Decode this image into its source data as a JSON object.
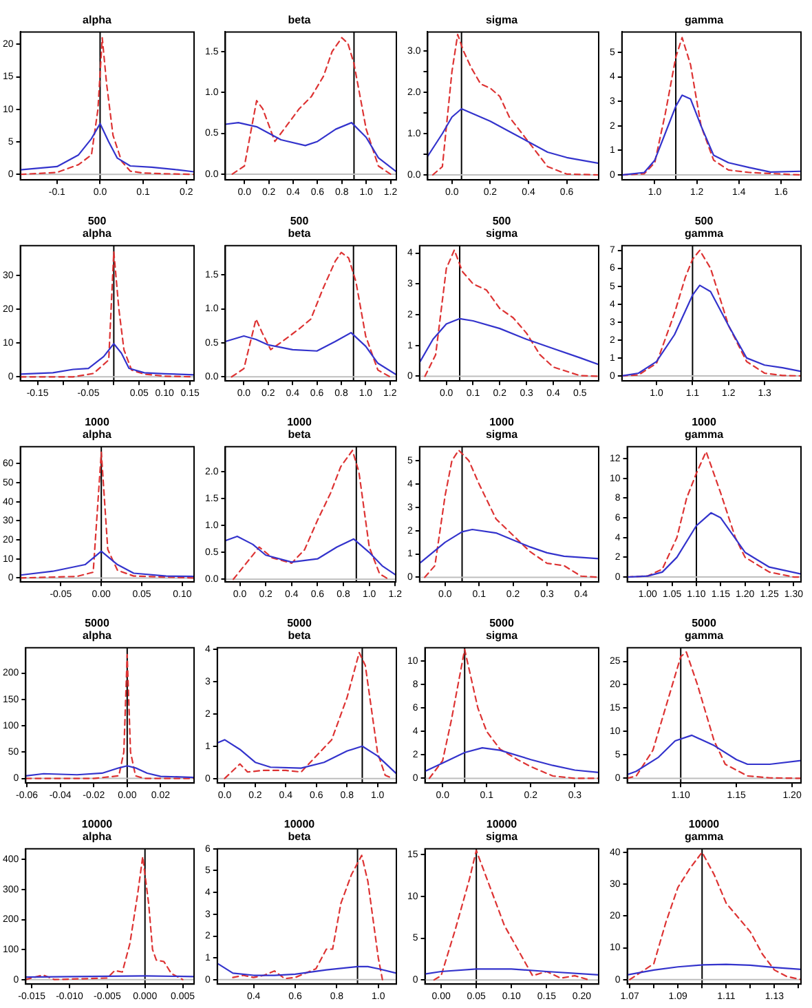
{
  "chart_data": [
    {
      "type": "line",
      "title": "alpha",
      "xlim": [
        -0.185,
        0.218
      ],
      "xticks": [
        -0.1,
        {
          "value": 0,
          "label": "0.0"
        },
        0.1,
        0.2
      ],
      "ylim": [
        -0.84,
        21.9
      ],
      "yticks": [
        0,
        5,
        10,
        15,
        20
      ],
      "grid": false,
      "legend": false,
      "marker": "none",
      "ref_lines": [
        {
          "axis": "x",
          "value": 0,
          "color": "#000000"
        },
        {
          "axis": "y",
          "value": 0,
          "color": "#bebebe"
        }
      ],
      "series": [
        {
          "color": "#3333cc",
          "line_style": "solid",
          "x": [
            -0.185,
            -0.1,
            -0.05,
            -0.02,
            0,
            0.02,
            0.04,
            0.07,
            0.12,
            0.18,
            0.218
          ],
          "values": [
            0.7,
            1.2,
            3,
            5.5,
            7.8,
            5,
            2.5,
            1.3,
            1.1,
            0.7,
            0.4
          ]
        },
        {
          "color": "#dd3333",
          "line_style": "dashed",
          "x": [
            -0.185,
            -0.1,
            -0.05,
            -0.02,
            -0.005,
            0.005,
            0.015,
            0.03,
            0.05,
            0.07,
            0.1,
            0.15,
            0.218
          ],
          "values": [
            0,
            0.3,
            1.5,
            3,
            10,
            21,
            14,
            6,
            2,
            0.5,
            0.2,
            0.1,
            0
          ]
        }
      ]
    },
    {
      "type": "line",
      "title": "beta",
      "xlim": [
        -0.157,
        1.248
      ],
      "xticks": [
        {
          "value": 0,
          "label": "0.0"
        },
        0.2,
        0.4,
        0.6,
        0.8,
        {
          "value": 1,
          "label": "1.0"
        },
        1.2
      ],
      "ylim": [
        -0.07,
        1.74
      ],
      "yticks": [
        {
          "value": 0,
          "label": "0.0"
        },
        0.5,
        {
          "value": 1,
          "label": "1.0"
        },
        1.5
      ],
      "grid": false,
      "legend": false,
      "marker": "none",
      "ref_lines": [
        {
          "axis": "x",
          "value": 0.9,
          "color": "#000000"
        },
        {
          "axis": "y",
          "value": 0,
          "color": "#bebebe"
        }
      ],
      "series": [
        {
          "color": "#3333cc",
          "line_style": "solid",
          "x": [
            -0.157,
            -0.05,
            0.1,
            0.3,
            0.5,
            0.6,
            0.75,
            0.88,
            1,
            1.1,
            1.248
          ],
          "values": [
            0.61,
            0.63,
            0.58,
            0.42,
            0.35,
            0.4,
            0.55,
            0.63,
            0.45,
            0.2,
            0.03
          ]
        },
        {
          "color": "#dd3333",
          "line_style": "dashed",
          "x": [
            -0.1,
            0,
            0.1,
            0.15,
            0.25,
            0.35,
            0.45,
            0.55,
            0.65,
            0.72,
            0.8,
            0.85,
            0.9,
            1,
            1.1,
            1.2
          ],
          "values": [
            0,
            0.1,
            0.9,
            0.8,
            0.4,
            0.6,
            0.8,
            0.95,
            1.2,
            1.5,
            1.67,
            1.6,
            1.35,
            0.55,
            0.1,
            0
          ]
        }
      ]
    },
    {
      "type": "line",
      "title": "sigma",
      "xlim": [
        -0.127,
        0.767
      ],
      "xticks": [
        {
          "value": 0,
          "label": "0.0"
        },
        0.2,
        0.4,
        0.6
      ],
      "ylim": [
        -0.12,
        3.46
      ],
      "yticks": [
        {
          "value": 0,
          "label": "0.0"
        },
        {
          "value": 0.5,
          "label": null
        },
        {
          "value": 1,
          "label": "1.0"
        },
        {
          "value": 1.5,
          "label": null
        },
        {
          "value": 2,
          "label": "2.0"
        },
        {
          "value": 2.5,
          "label": null
        },
        {
          "value": 3,
          "label": "3.0"
        }
      ],
      "grid": false,
      "legend": false,
      "marker": "none",
      "ref_lines": [
        {
          "axis": "x",
          "value": 0.05,
          "color": "#000000"
        },
        {
          "axis": "y",
          "value": 0,
          "color": "#bebebe"
        }
      ],
      "series": [
        {
          "color": "#3333cc",
          "line_style": "solid",
          "x": [
            -0.127,
            -0.05,
            0,
            0.05,
            0.1,
            0.2,
            0.3,
            0.4,
            0.5,
            0.6,
            0.767
          ],
          "values": [
            0.45,
            1,
            1.4,
            1.6,
            1.5,
            1.3,
            1.05,
            0.8,
            0.55,
            0.42,
            0.28
          ]
        },
        {
          "color": "#dd3333",
          "line_style": "dashed",
          "x": [
            -0.1,
            -0.05,
            0,
            0.03,
            0.06,
            0.1,
            0.15,
            0.2,
            0.25,
            0.3,
            0.4,
            0.5,
            0.6,
            0.767
          ],
          "values": [
            0,
            0.2,
            2.5,
            3.4,
            3,
            2.6,
            2.2,
            2.1,
            1.9,
            1.4,
            0.8,
            0.2,
            0.02,
            0
          ]
        }
      ]
    },
    {
      "type": "line",
      "title": "gamma",
      "xlim": [
        0.844,
        1.695
      ],
      "xticks": [
        {
          "value": 1,
          "label": "1.0"
        },
        1.2,
        1.4,
        1.6
      ],
      "ylim": [
        -0.2,
        5.83
      ],
      "yticks": [
        0,
        1,
        2,
        3,
        4,
        5
      ],
      "grid": false,
      "legend": false,
      "marker": "none",
      "ref_lines": [
        {
          "axis": "x",
          "value": 1.1,
          "color": "#000000"
        },
        {
          "axis": "y",
          "value": 0,
          "color": "#bebebe"
        }
      ],
      "series": [
        {
          "color": "#3333cc",
          "line_style": "solid",
          "x": [
            0.844,
            0.95,
            1,
            1.05,
            1.1,
            1.13,
            1.17,
            1.22,
            1.28,
            1.35,
            1.45,
            1.55,
            1.695
          ],
          "values": [
            0,
            0.1,
            0.6,
            1.7,
            2.8,
            3.25,
            3.1,
            2,
            0.8,
            0.5,
            0.3,
            0.12,
            0.15
          ]
        },
        {
          "color": "#dd3333",
          "line_style": "dashed",
          "x": [
            0.844,
            0.95,
            1,
            1.05,
            1.1,
            1.13,
            1.17,
            1.22,
            1.28,
            1.35,
            1.45,
            1.695
          ],
          "values": [
            0,
            0.05,
            0.5,
            2.5,
            4.8,
            5.6,
            4.5,
            2,
            0.6,
            0.2,
            0.1,
            0
          ]
        }
      ]
    },
    {
      "type": "line",
      "title": "500\nalpha",
      "xlim": [
        -0.184,
        0.158
      ],
      "xticks": [
        -0.15,
        {
          "value": -0.1,
          "label": null
        },
        -0.05,
        {
          "value": 0,
          "label": null
        },
        0.05,
        {
          "value": 0.1,
          "label": "0.10"
        },
        {
          "value": 0.15,
          "label": "0.15"
        }
      ],
      "ylim": [
        -1.2,
        38.8
      ],
      "yticks": [
        0,
        10,
        20,
        30
      ],
      "grid": false,
      "legend": false,
      "marker": "none",
      "ref_lines": [
        {
          "axis": "x",
          "value": 0,
          "color": "#000000"
        },
        {
          "axis": "y",
          "value": 0,
          "color": "#bebebe"
        }
      ],
      "series": [
        {
          "color": "#3333cc",
          "line_style": "solid",
          "x": [
            -0.184,
            -0.12,
            -0.08,
            -0.05,
            -0.02,
            0,
            0.015,
            0.03,
            0.06,
            0.1,
            0.158
          ],
          "values": [
            0.8,
            1.2,
            2.2,
            2.5,
            6,
            9.8,
            7,
            2.5,
            1.2,
            0.9,
            0.6
          ]
        },
        {
          "color": "#dd3333",
          "line_style": "dashed",
          "x": [
            -0.184,
            -0.08,
            -0.04,
            -0.01,
            0,
            0.01,
            0.02,
            0.035,
            0.06,
            0.1,
            0.158
          ],
          "values": [
            0,
            0,
            1,
            5,
            37,
            20,
            8,
            2,
            0.8,
            0.2,
            0
          ]
        }
      ]
    },
    {
      "type": "line",
      "title": "500\nbeta",
      "xlim": [
        -0.152,
        1.252
      ],
      "xticks": [
        {
          "value": 0,
          "label": "0.0"
        },
        0.2,
        0.4,
        0.6,
        0.8,
        {
          "value": 1,
          "label": "1.0"
        },
        1.2
      ],
      "ylim": [
        -0.06,
        1.93
      ],
      "yticks": [
        {
          "value": 0,
          "label": "0.0"
        },
        0.5,
        {
          "value": 1,
          "label": "1.0"
        },
        1.5
      ],
      "grid": false,
      "legend": false,
      "marker": "none",
      "ref_lines": [
        {
          "axis": "x",
          "value": 0.9,
          "color": "#000000"
        },
        {
          "axis": "y",
          "value": 0,
          "color": "#bebebe"
        }
      ],
      "series": [
        {
          "color": "#3333cc",
          "line_style": "solid",
          "x": [
            -0.152,
            0,
            0.1,
            0.2,
            0.4,
            0.6,
            0.75,
            0.88,
            1,
            1.1,
            1.252
          ],
          "values": [
            0.52,
            0.6,
            0.55,
            0.47,
            0.4,
            0.38,
            0.52,
            0.65,
            0.45,
            0.2,
            0.03
          ]
        },
        {
          "color": "#dd3333",
          "line_style": "dashed",
          "x": [
            -0.1,
            0,
            0.1,
            0.15,
            0.22,
            0.3,
            0.45,
            0.55,
            0.65,
            0.75,
            0.8,
            0.86,
            0.92,
            1,
            1.1,
            1.2
          ],
          "values": [
            0,
            0.12,
            0.85,
            0.65,
            0.4,
            0.5,
            0.7,
            0.85,
            1.3,
            1.7,
            1.83,
            1.75,
            1.4,
            0.6,
            0.1,
            0
          ]
        }
      ]
    },
    {
      "type": "line",
      "title": "500\nsigma",
      "xlim": [
        -0.1,
        0.57
      ],
      "xticks": [
        {
          "value": 0,
          "label": "0.0"
        },
        0.1,
        0.2,
        0.3,
        0.4,
        0.5
      ],
      "ylim": [
        -0.15,
        4.24
      ],
      "yticks": [
        0,
        1,
        2,
        3,
        4
      ],
      "grid": false,
      "legend": false,
      "marker": "none",
      "ref_lines": [
        {
          "axis": "x",
          "value": 0.05,
          "color": "#000000"
        },
        {
          "axis": "y",
          "value": 0,
          "color": "#bebebe"
        }
      ],
      "series": [
        {
          "color": "#3333cc",
          "line_style": "solid",
          "x": [
            -0.1,
            -0.05,
            0,
            0.05,
            0.1,
            0.2,
            0.3,
            0.4,
            0.5,
            0.57
          ],
          "values": [
            0.45,
            1.2,
            1.7,
            1.87,
            1.8,
            1.55,
            1.2,
            0.9,
            0.6,
            0.38
          ]
        },
        {
          "color": "#dd3333",
          "line_style": "dashed",
          "x": [
            -0.08,
            -0.04,
            0,
            0.03,
            0.06,
            0.1,
            0.15,
            0.2,
            0.25,
            0.3,
            0.35,
            0.4,
            0.5,
            0.57
          ],
          "values": [
            0,
            0.7,
            3.5,
            4.1,
            3.4,
            3,
            2.8,
            2.2,
            1.9,
            1.4,
            0.7,
            0.3,
            0.02,
            0
          ]
        }
      ]
    },
    {
      "type": "line",
      "title": "500\ngamma",
      "xlim": [
        0.904,
        1.401
      ],
      "xticks": [
        {
          "value": 1,
          "label": "1.0"
        },
        1.1,
        1.2,
        1.3
      ],
      "ylim": [
        -0.28,
        7.26
      ],
      "yticks": [
        0,
        1,
        2,
        3,
        4,
        5,
        6,
        7
      ],
      "grid": false,
      "legend": false,
      "marker": "none",
      "ref_lines": [
        {
          "axis": "x",
          "value": 1.1,
          "color": "#000000"
        },
        {
          "axis": "y",
          "value": 0,
          "color": "#bebebe"
        }
      ],
      "series": [
        {
          "color": "#3333cc",
          "line_style": "solid",
          "x": [
            0.904,
            0.95,
            1,
            1.05,
            1.1,
            1.12,
            1.15,
            1.2,
            1.25,
            1.3,
            1.35,
            1.401
          ],
          "values": [
            0,
            0.15,
            0.8,
            2.3,
            4.5,
            5.05,
            4.7,
            2.8,
            1,
            0.6,
            0.45,
            0.25
          ]
        },
        {
          "color": "#dd3333",
          "line_style": "dashed",
          "x": [
            0.904,
            0.95,
            1,
            1.05,
            1.08,
            1.1,
            1.12,
            1.15,
            1.2,
            1.25,
            1.3,
            1.35,
            1.401
          ],
          "values": [
            0,
            0.05,
            0.7,
            3.5,
            5.5,
            6.5,
            7,
            6,
            2.8,
            0.8,
            0.15,
            0.02,
            0
          ]
        }
      ]
    },
    {
      "type": "line",
      "title": "1000\nalpha",
      "xlim": [
        -0.1,
        0.1146
      ],
      "xticks": [
        -0.05,
        {
          "value": 0,
          "label": "0.00"
        },
        {
          "value": 0.05,
          "label": "0.05"
        },
        {
          "value": 0.1,
          "label": "0.10"
        }
      ],
      "ylim": [
        -2.1,
        68.9
      ],
      "yticks": [
        0,
        10,
        20,
        30,
        40,
        50,
        60
      ],
      "grid": false,
      "legend": false,
      "marker": "none",
      "ref_lines": [
        {
          "axis": "x",
          "value": 0,
          "color": "#000000"
        },
        {
          "axis": "y",
          "value": 0,
          "color": "#bebebe"
        }
      ],
      "series": [
        {
          "color": "#3333cc",
          "line_style": "solid",
          "x": [
            -0.1,
            -0.06,
            -0.02,
            0,
            0.02,
            0.04,
            0.08,
            0.1146
          ],
          "values": [
            1.5,
            3.5,
            7,
            14,
            7,
            2.5,
            1,
            0.8
          ]
        },
        {
          "color": "#dd3333",
          "line_style": "dashed",
          "x": [
            -0.1,
            -0.03,
            -0.01,
            0,
            0.008,
            0.02,
            0.04,
            0.1146
          ],
          "values": [
            0,
            0.8,
            3,
            66,
            15,
            4,
            1,
            0
          ]
        }
      ]
    },
    {
      "type": "line",
      "title": "1000\nbeta",
      "xlim": [
        -0.112,
        1.205
      ],
      "xticks": [
        {
          "value": 0,
          "label": "0.0"
        },
        0.2,
        0.4,
        0.6,
        0.8,
        {
          "value": 1,
          "label": "1.0"
        },
        1.2
      ],
      "ylim": [
        -0.05,
        2.47
      ],
      "yticks": [
        {
          "value": 0,
          "label": "0.0"
        },
        0.5,
        {
          "value": 1,
          "label": "1.0"
        },
        1.5,
        {
          "value": 2,
          "label": "2.0"
        }
      ],
      "grid": false,
      "legend": false,
      "marker": "none",
      "ref_lines": [
        {
          "axis": "x",
          "value": 0.9,
          "color": "#000000"
        },
        {
          "axis": "y",
          "value": 0,
          "color": "#bebebe"
        }
      ],
      "series": [
        {
          "color": "#3333cc",
          "line_style": "solid",
          "x": [
            -0.112,
            -0.02,
            0.1,
            0.2,
            0.4,
            0.6,
            0.75,
            0.88,
            1,
            1.1,
            1.205
          ],
          "values": [
            0.72,
            0.8,
            0.65,
            0.45,
            0.32,
            0.38,
            0.6,
            0.75,
            0.5,
            0.25,
            0.08
          ]
        },
        {
          "color": "#dd3333",
          "line_style": "dashed",
          "x": [
            -0.05,
            0.05,
            0.15,
            0.25,
            0.4,
            0.5,
            0.6,
            0.7,
            0.78,
            0.87,
            0.92,
            1,
            1.08,
            1.15
          ],
          "values": [
            0,
            0.3,
            0.6,
            0.4,
            0.3,
            0.55,
            1.1,
            1.6,
            2.1,
            2.4,
            2,
            0.6,
            0.1,
            0
          ]
        }
      ]
    },
    {
      "type": "line",
      "title": "1000\nsigma",
      "xlim": [
        -0.075,
        0.452
      ],
      "xticks": [
        {
          "value": 0,
          "label": "0.0"
        },
        0.1,
        0.2,
        0.3,
        0.4
      ],
      "ylim": [
        -0.2,
        5.6
      ],
      "yticks": [
        0,
        1,
        2,
        3,
        4,
        5
      ],
      "grid": false,
      "legend": false,
      "marker": "none",
      "ref_lines": [
        {
          "axis": "x",
          "value": 0.05,
          "color": "#000000"
        },
        {
          "axis": "y",
          "value": 0,
          "color": "#bebebe"
        }
      ],
      "series": [
        {
          "color": "#3333cc",
          "line_style": "solid",
          "x": [
            -0.075,
            0,
            0.05,
            0.08,
            0.15,
            0.2,
            0.25,
            0.3,
            0.35,
            0.452
          ],
          "values": [
            0.6,
            1.5,
            1.95,
            2.05,
            1.9,
            1.6,
            1.3,
            1.05,
            0.9,
            0.8
          ]
        },
        {
          "color": "#dd3333",
          "line_style": "dashed",
          "x": [
            -0.06,
            -0.03,
            0,
            0.02,
            0.04,
            0.07,
            0.1,
            0.15,
            0.2,
            0.25,
            0.3,
            0.35,
            0.4,
            0.452
          ],
          "values": [
            0,
            0.5,
            3.5,
            5,
            5.45,
            5,
            4,
            2.5,
            1.8,
            1.1,
            0.6,
            0.5,
            0.05,
            0
          ]
        }
      ]
    },
    {
      "type": "line",
      "title": "1000\ngamma",
      "xlim": [
        0.958,
        1.315
      ],
      "xticks": [
        {
          "value": 1,
          "label": "1.00"
        },
        1.05,
        {
          "value": 1.1,
          "label": "1.10"
        },
        1.15,
        {
          "value": 1.2,
          "label": "1.20"
        },
        1.25,
        {
          "value": 1.3,
          "label": "1.30"
        }
      ],
      "ylim": [
        -0.5,
        13.2
      ],
      "yticks": [
        0,
        2,
        4,
        6,
        8,
        10,
        12
      ],
      "grid": false,
      "legend": false,
      "marker": "none",
      "ref_lines": [
        {
          "axis": "x",
          "value": 1.1,
          "color": "#000000"
        },
        {
          "axis": "y",
          "value": 0,
          "color": "#bebebe"
        }
      ],
      "series": [
        {
          "color": "#3333cc",
          "line_style": "solid",
          "x": [
            0.958,
            1,
            1.03,
            1.06,
            1.1,
            1.13,
            1.15,
            1.2,
            1.25,
            1.315
          ],
          "values": [
            0,
            0.1,
            0.5,
            2,
            5.2,
            6.5,
            6,
            2.5,
            1,
            0.3
          ]
        },
        {
          "color": "#dd3333",
          "line_style": "dashed",
          "x": [
            0.958,
            1,
            1.03,
            1.06,
            1.08,
            1.1,
            1.12,
            1.15,
            1.18,
            1.2,
            1.25,
            1.3,
            1.315
          ],
          "values": [
            0,
            0.1,
            0.8,
            4,
            8,
            10.5,
            12.7,
            8.5,
            4,
            2,
            0.5,
            0,
            0
          ]
        }
      ]
    },
    {
      "type": "line",
      "title": "5000\nalpha",
      "xlim": [
        -0.0607,
        0.04
      ],
      "xticks": [
        -0.06,
        -0.04,
        -0.02,
        {
          "value": 0,
          "label": "0.00"
        },
        {
          "value": 0.02,
          "label": "0.02"
        }
      ],
      "ylim": [
        -8.6,
        248
      ],
      "yticks": [
        0,
        50,
        100,
        150,
        200
      ],
      "grid": false,
      "legend": false,
      "marker": "none",
      "ref_lines": [
        {
          "axis": "x",
          "value": 0,
          "color": "#000000"
        },
        {
          "axis": "y",
          "value": 0,
          "color": "#bebebe"
        }
      ],
      "series": [
        {
          "color": "#3333cc",
          "line_style": "solid",
          "x": [
            -0.0607,
            -0.05,
            -0.03,
            -0.015,
            -0.005,
            0,
            0.005,
            0.012,
            0.02,
            0.04
          ],
          "values": [
            5,
            9,
            7,
            10,
            20,
            24,
            20,
            10,
            4,
            2
          ]
        },
        {
          "color": "#dd3333",
          "line_style": "dashed",
          "x": [
            -0.0607,
            -0.02,
            -0.005,
            -0.002,
            0,
            0.002,
            0.005,
            0.01,
            0.04
          ],
          "values": [
            0,
            0,
            5,
            50,
            235,
            50,
            5,
            0,
            0
          ]
        }
      ]
    },
    {
      "type": "line",
      "title": "5000\nbeta",
      "xlim": [
        -0.048,
        1.123
      ],
      "xticks": [
        {
          "value": 0,
          "label": "0.0"
        },
        0.2,
        0.4,
        0.6,
        0.8,
        {
          "value": 1,
          "label": "1.0"
        }
      ],
      "ylim": [
        -0.14,
        4.05
      ],
      "yticks": [
        0,
        1,
        2,
        3,
        4
      ],
      "grid": false,
      "legend": false,
      "marker": "none",
      "ref_lines": [
        {
          "axis": "x",
          "value": 0.9,
          "color": "#000000"
        },
        {
          "axis": "y",
          "value": 0,
          "color": "#bebebe"
        }
      ],
      "series": [
        {
          "color": "#3333cc",
          "line_style": "solid",
          "x": [
            -0.048,
            0,
            0.1,
            0.2,
            0.3,
            0.5,
            0.65,
            0.8,
            0.9,
            1,
            1.123
          ],
          "values": [
            1.1,
            1.2,
            0.9,
            0.5,
            0.35,
            0.32,
            0.5,
            0.85,
            1,
            0.7,
            0.15
          ]
        },
        {
          "color": "#dd3333",
          "line_style": "dashed",
          "x": [
            0,
            0.1,
            0.15,
            0.25,
            0.4,
            0.5,
            0.6,
            0.7,
            0.8,
            0.88,
            0.92,
            1,
            1.05,
            1.1
          ],
          "values": [
            0,
            0.45,
            0.2,
            0.25,
            0.25,
            0.2,
            0.7,
            1.2,
            2.5,
            3.9,
            3.5,
            0.8,
            0.1,
            0
          ]
        }
      ]
    },
    {
      "type": "line",
      "title": "5000\nsigma",
      "xlim": [
        -0.04,
        0.354
      ],
      "xticks": [
        {
          "value": 0,
          "label": "0.0"
        },
        0.1,
        0.2,
        0.3
      ],
      "ylim": [
        -0.4,
        11.15
      ],
      "yticks": [
        0,
        2,
        4,
        6,
        8,
        10
      ],
      "grid": false,
      "legend": false,
      "marker": "none",
      "ref_lines": [
        {
          "axis": "x",
          "value": 0.05,
          "color": "#000000"
        },
        {
          "axis": "y",
          "value": 0,
          "color": "#bebebe"
        }
      ],
      "series": [
        {
          "color": "#3333cc",
          "line_style": "solid",
          "x": [
            -0.04,
            0,
            0.05,
            0.09,
            0.13,
            0.2,
            0.25,
            0.3,
            0.354
          ],
          "values": [
            0.6,
            1.3,
            2.2,
            2.6,
            2.4,
            1.6,
            1.1,
            0.7,
            0.5
          ]
        },
        {
          "color": "#dd3333",
          "line_style": "dashed",
          "x": [
            -0.03,
            0,
            0.02,
            0.05,
            0.08,
            0.1,
            0.13,
            0.17,
            0.2,
            0.25,
            0.3,
            0.354
          ],
          "values": [
            0,
            1.5,
            5,
            11,
            6,
            4,
            2.5,
            1.6,
            1,
            0.2,
            0,
            0
          ]
        }
      ]
    },
    {
      "type": "line",
      "title": "5000\ngamma",
      "xlim": [
        1.052,
        1.208
      ],
      "xticks": [
        {
          "value": 1.1,
          "label": "1.10"
        },
        1.15,
        {
          "value": 1.2,
          "label": "1.20"
        }
      ],
      "ylim": [
        -1,
        27.9
      ],
      "yticks": [
        0,
        5,
        10,
        15,
        20,
        25
      ],
      "grid": false,
      "legend": false,
      "marker": "none",
      "ref_lines": [
        {
          "axis": "x",
          "value": 1.1,
          "color": "#000000"
        },
        {
          "axis": "y",
          "value": 0,
          "color": "#bebebe"
        }
      ],
      "series": [
        {
          "color": "#3333cc",
          "line_style": "solid",
          "x": [
            1.052,
            1.06,
            1.08,
            1.095,
            1.11,
            1.13,
            1.15,
            1.16,
            1.18,
            1.208
          ],
          "values": [
            0.8,
            1.5,
            4.5,
            8,
            9.2,
            7,
            4,
            3,
            3,
            3.8
          ]
        },
        {
          "color": "#dd3333",
          "line_style": "dashed",
          "x": [
            1.052,
            1.06,
            1.075,
            1.09,
            1.1,
            1.105,
            1.115,
            1.13,
            1.14,
            1.16,
            1.18,
            1.208
          ],
          "values": [
            0,
            0.5,
            6,
            18,
            26,
            27,
            20,
            8,
            3,
            0.5,
            0.1,
            0
          ]
        }
      ]
    },
    {
      "type": "line",
      "title": "10000\nalpha",
      "xlim": [
        -0.0158,
        0.0065
      ],
      "xticks": [
        -0.015,
        {
          "value": -0.01,
          "label": "-0.010"
        },
        -0.005,
        {
          "value": 0,
          "label": "0.000"
        },
        0.005
      ],
      "ylim": [
        -15,
        436
      ],
      "yticks": [
        0,
        100,
        200,
        300,
        400
      ],
      "grid": false,
      "legend": false,
      "marker": "none",
      "ref_lines": [
        {
          "axis": "x",
          "value": 0,
          "color": "#000000"
        },
        {
          "axis": "y",
          "value": 0,
          "color": "#bebebe"
        }
      ],
      "series": [
        {
          "color": "#3333cc",
          "line_style": "solid",
          "x": [
            -0.0158,
            -0.005,
            0,
            0.0065
          ],
          "values": [
            8,
            11,
            12,
            10
          ]
        },
        {
          "color": "#dd3333",
          "line_style": "dashed",
          "x": [
            -0.0158,
            -0.0135,
            -0.012,
            -0.005,
            -0.004,
            -0.003,
            -0.002,
            -0.001,
            -0.0003,
            0.0005,
            0.001,
            0.0015,
            0.0025,
            0.0035,
            0.005
          ],
          "values": [
            0,
            15,
            0,
            5,
            30,
            25,
            120,
            280,
            410,
            250,
            100,
            65,
            60,
            20,
            0
          ]
        }
      ]
    },
    {
      "type": "line",
      "title": "10000\nbeta",
      "xlim": [
        0.225,
        1.087
      ],
      "xticks": [
        0.4,
        0.6,
        0.8,
        {
          "value": 1,
          "label": "1.0"
        }
      ],
      "ylim": [
        -0.2,
        6
      ],
      "yticks": [
        0,
        1,
        2,
        3,
        4,
        5,
        6
      ],
      "grid": false,
      "legend": false,
      "marker": "none",
      "ref_lines": [
        {
          "axis": "x",
          "value": 0.9,
          "color": "#000000"
        },
        {
          "axis": "y",
          "value": 0,
          "color": "#bebebe"
        }
      ],
      "series": [
        {
          "color": "#3333cc",
          "line_style": "solid",
          "x": [
            0.225,
            0.3,
            0.4,
            0.5,
            0.6,
            0.75,
            0.9,
            0.95,
            1,
            1.087
          ],
          "values": [
            0.75,
            0.3,
            0.2,
            0.2,
            0.25,
            0.45,
            0.6,
            0.6,
            0.5,
            0.3
          ]
        },
        {
          "color": "#dd3333",
          "line_style": "dashed",
          "x": [
            0.3,
            0.35,
            0.4,
            0.45,
            0.5,
            0.55,
            0.6,
            0.7,
            0.75,
            0.78,
            0.82,
            0.87,
            0.92,
            0.95,
            1,
            1.02
          ],
          "values": [
            0.1,
            0.2,
            0.1,
            0.2,
            0.4,
            0.05,
            0.1,
            0.5,
            1.4,
            1.4,
            3.5,
            4.8,
            5.7,
            4.5,
            1,
            0
          ]
        }
      ]
    },
    {
      "type": "line",
      "title": "10000\nsigma",
      "xlim": [
        -0.023,
        0.224
      ],
      "xticks": [
        {
          "value": 0,
          "label": "0.00"
        },
        0.05,
        {
          "value": 0.1,
          "label": "0.10"
        },
        0.15,
        {
          "value": 0.2,
          "label": "0.20"
        }
      ],
      "ylim": [
        -0.5,
        15.7
      ],
      "yticks": [
        0,
        5,
        10,
        15
      ],
      "grid": false,
      "legend": false,
      "marker": "none",
      "ref_lines": [
        {
          "axis": "x",
          "value": 0.05,
          "color": "#000000"
        },
        {
          "axis": "y",
          "value": 0,
          "color": "#bebebe"
        }
      ],
      "series": [
        {
          "color": "#3333cc",
          "line_style": "solid",
          "x": [
            -0.023,
            0,
            0.05,
            0.1,
            0.15,
            0.224
          ],
          "values": [
            0.7,
            1,
            1.3,
            1.3,
            1,
            0.6
          ]
        },
        {
          "color": "#dd3333",
          "line_style": "dashed",
          "x": [
            -0.01,
            0,
            0.02,
            0.04,
            0.05,
            0.07,
            0.09,
            0.11,
            0.13,
            0.15,
            0.17,
            0.19,
            0.21
          ],
          "values": [
            0,
            0.5,
            6,
            12,
            15.5,
            11,
            6.5,
            3.5,
            0.5,
            1,
            0.2,
            0.5,
            0
          ]
        }
      ]
    },
    {
      "type": "line",
      "title": "10000\ngamma",
      "xlim": [
        1.069,
        1.141
      ],
      "xticks": [
        1.07,
        {
          "value": 1.08,
          "label": null
        },
        1.09,
        {
          "value": 1.1,
          "label": null
        },
        1.11,
        {
          "value": 1.12,
          "label": null
        },
        1.13,
        {
          "value": 1.14,
          "label": null
        }
      ],
      "ylim": [
        -1.4,
        41.1
      ],
      "yticks": [
        0,
        10,
        20,
        30,
        40
      ],
      "grid": false,
      "legend": false,
      "marker": "none",
      "ref_lines": [
        {
          "axis": "x",
          "value": 1.1,
          "color": "#000000"
        },
        {
          "axis": "y",
          "value": 0,
          "color": "#bebebe"
        }
      ],
      "series": [
        {
          "color": "#3333cc",
          "line_style": "solid",
          "x": [
            1.069,
            1.08,
            1.09,
            1.1,
            1.11,
            1.12,
            1.13,
            1.141
          ],
          "values": [
            1.5,
            3,
            4,
            4.6,
            4.8,
            4.5,
            3.8,
            3.2
          ]
        },
        {
          "color": "#dd3333",
          "line_style": "dashed",
          "x": [
            1.07,
            1.08,
            1.085,
            1.09,
            1.095,
            1.1,
            1.105,
            1.11,
            1.12,
            1.125,
            1.13,
            1.135,
            1.141
          ],
          "values": [
            0,
            5,
            18,
            29,
            35,
            40,
            33,
            24,
            15,
            8,
            3,
            1,
            0
          ]
        }
      ]
    }
  ]
}
